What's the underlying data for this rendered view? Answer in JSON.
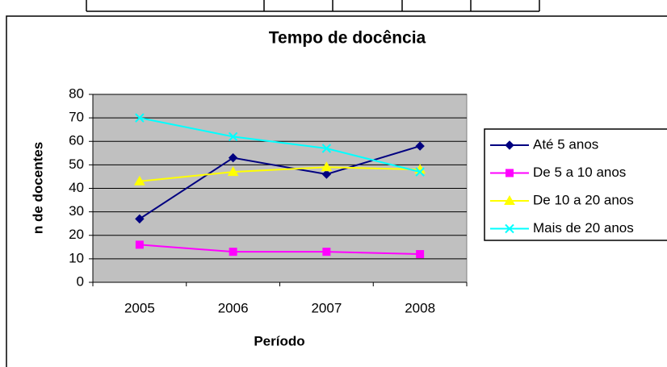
{
  "chart_data": {
    "type": "line",
    "title": "Tempo de docência",
    "x_label": "Período",
    "y_label": "n de docentes",
    "categories": [
      "2005",
      "2006",
      "2007",
      "2008"
    ],
    "series": [
      {
        "name": "Até 5 anos",
        "color": "#000080",
        "marker": "diamond",
        "values": [
          27,
          53,
          46,
          58
        ]
      },
      {
        "name": "De 5 a 10 anos",
        "color": "#ff00ff",
        "marker": "square",
        "values": [
          16,
          13,
          13,
          12
        ]
      },
      {
        "name": "De 10 a 20 anos",
        "color": "#ffff00",
        "marker": "triangle",
        "values": [
          43,
          47,
          49,
          48
        ]
      },
      {
        "name": "Mais de 20 anos",
        "color": "#00ffff",
        "marker": "x",
        "values": [
          70,
          62,
          57,
          47
        ]
      }
    ],
    "ylim": [
      0,
      80
    ],
    "yticks": [
      0,
      10,
      20,
      30,
      40,
      50,
      60,
      70,
      80
    ],
    "grid": true,
    "legend": "right"
  }
}
